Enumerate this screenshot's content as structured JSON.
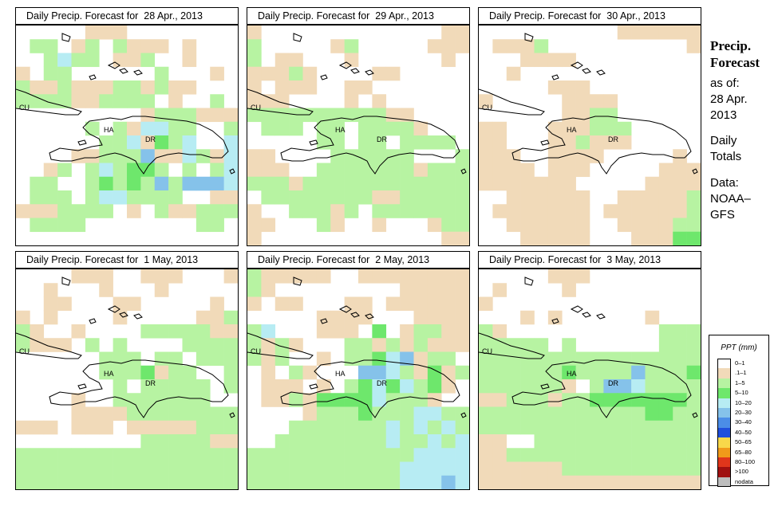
{
  "side_panel": {
    "title_line1": "Precip.",
    "title_line2": "Forecast",
    "asof_label": "as of:",
    "asof_date1": "28 Apr.",
    "asof_date2": "2013",
    "totals_line1": "Daily",
    "totals_line2": "Totals",
    "data_line1": "Data:",
    "data_line2": "NOAA–",
    "data_line3": "GFS"
  },
  "map_labels": {
    "cuba": "CU",
    "haiti": "HA",
    "dominican_republic": "DR"
  },
  "legend": {
    "title": "PPT (mm)",
    "items": [
      {
        "label": "0–1",
        "color": "#ffffff"
      },
      {
        "label": ".1–1",
        "color": "#f1dab9"
      },
      {
        "label": "1–5",
        "color": "#b7f3a2"
      },
      {
        "label": "5–10",
        "color": "#6ee76c"
      },
      {
        "label": "10–20",
        "color": "#b7ecf3"
      },
      {
        "label": "20–30",
        "color": "#85c2ea"
      },
      {
        "label": "30–40",
        "color": "#4b8de7"
      },
      {
        "label": "40–50",
        "color": "#1f4fdc"
      },
      {
        "label": "50–65",
        "color": "#f8d84a"
      },
      {
        "label": "65–80",
        "color": "#f09a1a"
      },
      {
        "label": "80–100",
        "color": "#e0361b"
      },
      {
        "label": ">100",
        "color": "#a01010"
      },
      {
        "label": "nodata",
        "color": "#bdbdbd"
      }
    ]
  },
  "panels": [
    {
      "title": "Daily Precip. Forecast for  28 Apr., 2013",
      "grid": [
        "0000011100000000",
        "0220120211101000",
        "0024220112001000",
        "1022000000200010",
        "2112111221211000",
        "2222112222010020",
        "0000000001222111",
        "0000020214422002",
        "0000002241324004",
        "0000112225114214",
        "0012024233202024",
        "0220023232525554",
        "0222024422220011",
        "1112222010211222",
        "0222200000000220",
        "0000000000000000"
      ]
    },
    {
      "title": "Daily Precip. Forecast for  29 Apr., 2013",
      "grid": [
        "1000000000000011",
        "2000001200000111",
        "2011000100000010",
        "1112100001100000",
        "1011100110000000",
        "1110000101000000",
        "2222222222110000",
        "0222022022221000",
        "0000022022022220",
        "1100002222220002",
        "1110022222221222",
        "2221222222222222",
        "0222222221122222",
        "1002221202222222",
        "1100021001000122",
        "1000000000000011"
      ]
    },
    {
      "title": "Daily Precip. Forecast for  30 Apr., 2013",
      "grid": [
        "0000000000111111",
        "0111200000000001",
        "0001111000000000",
        "0010000000000000",
        "0000011100000000",
        "1000001111000000",
        "0000001122000000",
        "1100011122200000",
        "1100011211100000",
        "1110011110000010",
        "1111011100000111",
        "1111111000001111",
        "0011111100111112",
        "0111111101111112",
        "0011111100111122",
        "0001111100011133"
      ]
    },
    {
      "title": "Daily Precip. Forecast for  1 May, 2013",
      "grid": [
        "0000111001110001",
        "0010001000100000",
        "0011000110000010",
        "1010000100000112",
        "2100100002222211",
        "2111020200002222",
        "0000002220220222",
        "0000002223122002",
        "0000000202222202",
        "0000100222222200",
        "0000111122222222",
        "1110111011111222",
        "0000000002222211",
        "2222222222222222",
        "2222222222222222",
        "2222222222222222"
      ]
    },
    {
      "title": "Daily Precip. Forecast for  2 May, 2013",
      "grid": [
        "2111110011111111",
        "2100000000011111",
        "1011000110111111",
        "0000011110001111",
        "2400011103012211",
        "2121000221212111",
        "2120010223451220",
        "0102100055421312",
        "0111010234342310",
        "0112133334222100",
        "0000122232224422",
        "0002222222424242",
        "0022222222422424",
        "2222222222224444",
        "2222222222244444",
        "2222222222244454"
      ]
    },
    {
      "title": "Daily Precip. Forecast for  3 May, 2013",
      "grid": [
        "0000011100000000",
        "0100001000000000",
        "1000000000000000",
        "0001010000001000",
        "2100000000000222",
        "2222202000000222",
        "2222222222222222",
        "2222223222252223",
        "2222221025542222",
        "1122212233333332",
        "2222222222223322",
        "2222222222222222",
        "1100222222222222",
        "1122222222222222",
        "1111112222222222",
        "1111111111111111"
      ]
    }
  ]
}
